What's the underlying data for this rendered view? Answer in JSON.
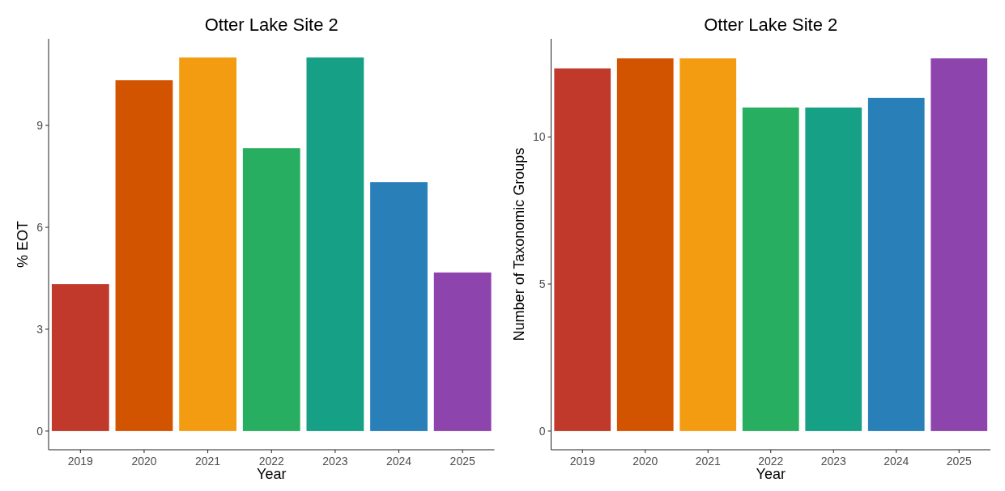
{
  "chart_data": [
    {
      "type": "bar",
      "title": "Otter Lake Site 2",
      "xlabel": "Year",
      "ylabel": "% EOT",
      "categories": [
        "2019",
        "2020",
        "2021",
        "2022",
        "2023",
        "2024",
        "2025"
      ],
      "values": [
        4.33,
        10.33,
        11,
        8.33,
        11,
        7.33,
        4.67
      ],
      "colors": [
        "#c0392b",
        "#d35400",
        "#f39c12",
        "#27ae60",
        "#16a085",
        "#2980b9",
        "#8e44ad"
      ],
      "ylim": [
        -0.55,
        11.55
      ],
      "yticks": [
        0,
        3,
        6,
        9
      ],
      "grid": false
    },
    {
      "type": "bar",
      "title": "Otter Lake Site 2",
      "xlabel": "Year",
      "ylabel": "Number of Taxonomic Groups",
      "categories": [
        "2019",
        "2020",
        "2021",
        "2022",
        "2023",
        "2024",
        "2025"
      ],
      "values": [
        12.33,
        12.67,
        12.67,
        11,
        11,
        11.33,
        12.67
      ],
      "colors": [
        "#c0392b",
        "#d35400",
        "#f39c12",
        "#27ae60",
        "#16a085",
        "#2980b9",
        "#8e44ad"
      ],
      "ylim": [
        -0.635,
        13.335
      ],
      "yticks": [
        0,
        5,
        10
      ],
      "grid": false
    }
  ]
}
